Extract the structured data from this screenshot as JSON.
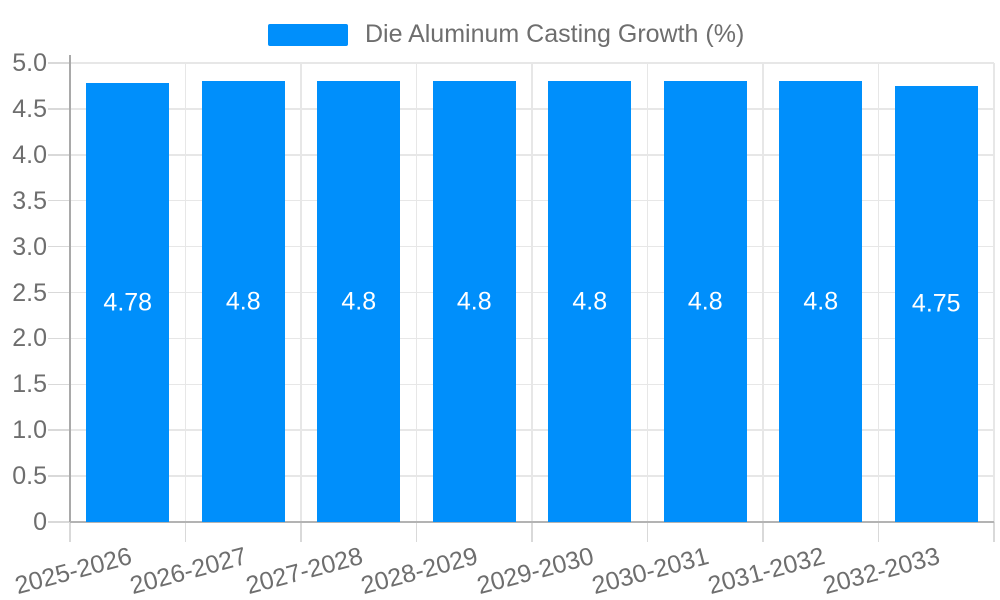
{
  "legend": {
    "label": "Die Aluminum Casting Growth (%)"
  },
  "chart_data": {
    "type": "bar",
    "title": "",
    "categories": [
      "2025-2026",
      "2026-2027",
      "2027-2028",
      "2028-2029",
      "2029-2030",
      "2030-2031",
      "2031-2032",
      "2032-2033"
    ],
    "series": [
      {
        "name": "Die Aluminum Casting Growth (%)",
        "values": [
          4.78,
          4.8,
          4.8,
          4.8,
          4.8,
          4.8,
          4.8,
          4.75
        ]
      }
    ],
    "value_labels": [
      "4.78",
      "4.8",
      "4.8",
      "4.8",
      "4.8",
      "4.8",
      "4.8",
      "4.75"
    ],
    "xlabel": "",
    "ylabel": "",
    "ylim": [
      0,
      5
    ],
    "ytick_labels": [
      "0",
      "0.5",
      "1.0",
      "1.5",
      "2.0",
      "2.5",
      "3.0",
      "3.5",
      "4.0",
      "4.5",
      "5.0"
    ],
    "grid": true,
    "legend_position": "top-center",
    "x_label_rotation_deg": -15,
    "colors": {
      "bar": "#008FFB",
      "axis_label": "#6e6e6e",
      "legend_text": "#6e6e6e",
      "grid": "#e7e7e7",
      "tick": "#d9d9d9",
      "axis_line": "#b3b3b3",
      "value_label": "#ffffff",
      "background": "#ffffff"
    }
  }
}
